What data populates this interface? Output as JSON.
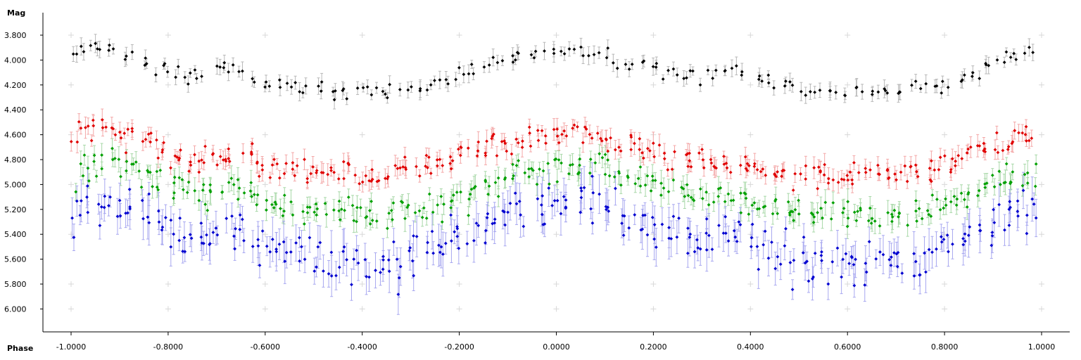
{
  "chart_data": {
    "type": "scatter",
    "ylabel": "Mag",
    "xlabel": "Phase",
    "xlim": [
      -1.06,
      1.06
    ],
    "ylim": [
      6.18,
      3.62
    ],
    "y_inverted": true,
    "x_ticks": [
      "-1.0000",
      "-0.8000",
      "-0.6000",
      "-0.4000",
      "-0.2000",
      "0.0000",
      "0.2000",
      "0.4000",
      "0.6000",
      "0.8000",
      "1.0000"
    ],
    "y_ticks": [
      "3.800",
      "4.000",
      "4.200",
      "4.400",
      "4.600",
      "4.800",
      "5.000",
      "5.200",
      "5.400",
      "5.600",
      "5.800",
      "6.000"
    ],
    "grid": "sparse plus-sign markers",
    "series_colors": {
      "black": "#000000",
      "red": "#e00000",
      "green": "#00a000",
      "blue": "#0000d0"
    },
    "error_bar_colors": {
      "black": "#b8b8b8",
      "red": "#f4a8a8",
      "green": "#a8d8a8",
      "blue": "#a8a8f0"
    },
    "series": [
      {
        "color": "black",
        "x": [
          -1.0,
          -0.97,
          -0.94,
          -0.91,
          -0.88,
          -0.85,
          -0.82,
          -0.79,
          -0.76,
          -0.73,
          -0.7,
          -0.67,
          -0.64,
          -0.61,
          -0.58,
          -0.55,
          -0.52,
          -0.49,
          -0.46,
          -0.43,
          -0.4,
          -0.37,
          -0.34,
          -0.31,
          -0.28,
          -0.25,
          -0.22,
          -0.19,
          -0.16,
          -0.13,
          -0.1,
          -0.07,
          -0.04,
          -0.01,
          0.02,
          0.05,
          0.08,
          0.11,
          0.14,
          0.17,
          0.2,
          0.23,
          0.26,
          0.29,
          0.32,
          0.35,
          0.38,
          0.41,
          0.44,
          0.47,
          0.5,
          0.53,
          0.56,
          0.59,
          0.62,
          0.65,
          0.68,
          0.71,
          0.74,
          0.77,
          0.8,
          0.83,
          0.86,
          0.89,
          0.92,
          0.95,
          0.98
        ],
        "y": [
          3.92,
          3.9,
          3.9,
          3.92,
          3.96,
          4.0,
          4.05,
          4.1,
          4.14,
          4.12,
          4.06,
          4.05,
          4.1,
          4.16,
          4.2,
          4.22,
          4.23,
          4.24,
          4.25,
          4.25,
          4.26,
          4.26,
          4.25,
          4.24,
          4.22,
          4.2,
          4.16,
          4.12,
          4.07,
          4.02,
          3.98,
          3.95,
          3.92,
          3.9,
          3.9,
          3.92,
          3.95,
          3.98,
          4.02,
          4.05,
          4.08,
          4.12,
          4.15,
          4.15,
          4.12,
          4.08,
          4.1,
          4.15,
          4.2,
          4.22,
          4.23,
          4.24,
          4.25,
          4.26,
          4.26,
          4.26,
          4.25,
          4.25,
          4.24,
          4.22,
          4.2,
          4.16,
          4.1,
          4.05,
          4.0,
          3.96,
          3.93
        ]
      },
      {
        "color": "red",
        "x": [
          -1.0,
          -0.97,
          -0.94,
          -0.91,
          -0.88,
          -0.85,
          -0.82,
          -0.79,
          -0.76,
          -0.73,
          -0.7,
          -0.67,
          -0.64,
          -0.61,
          -0.58,
          -0.55,
          -0.52,
          -0.49,
          -0.46,
          -0.43,
          -0.4,
          -0.37,
          -0.34,
          -0.31,
          -0.28,
          -0.25,
          -0.22,
          -0.19,
          -0.16,
          -0.13,
          -0.1,
          -0.07,
          -0.04,
          -0.01,
          0.02,
          0.05,
          0.08,
          0.11,
          0.14,
          0.17,
          0.2,
          0.23,
          0.26,
          0.29,
          0.32,
          0.35,
          0.38,
          0.41,
          0.44,
          0.47,
          0.5,
          0.53,
          0.56,
          0.59,
          0.62,
          0.65,
          0.68,
          0.71,
          0.74,
          0.77,
          0.8,
          0.83,
          0.86,
          0.89,
          0.92,
          0.95,
          0.98
        ],
        "y": [
          4.62,
          4.58,
          4.56,
          4.57,
          4.6,
          4.64,
          4.7,
          4.76,
          4.8,
          4.82,
          4.8,
          4.78,
          4.8,
          4.84,
          4.86,
          4.88,
          4.9,
          4.9,
          4.9,
          4.91,
          4.92,
          4.92,
          4.9,
          4.88,
          4.86,
          4.84,
          4.8,
          4.76,
          4.72,
          4.68,
          4.65,
          4.62,
          4.6,
          4.58,
          4.58,
          4.6,
          4.62,
          4.64,
          4.67,
          4.7,
          4.72,
          4.76,
          4.8,
          4.82,
          4.82,
          4.82,
          4.84,
          4.86,
          4.88,
          4.9,
          4.9,
          4.92,
          4.92,
          4.93,
          4.93,
          4.92,
          4.92,
          4.9,
          4.9,
          4.88,
          4.85,
          4.8,
          4.75,
          4.7,
          4.66,
          4.63,
          4.62
        ]
      },
      {
        "color": "green",
        "x": [
          -1.0,
          -0.97,
          -0.94,
          -0.91,
          -0.88,
          -0.85,
          -0.82,
          -0.79,
          -0.76,
          -0.73,
          -0.7,
          -0.67,
          -0.64,
          -0.61,
          -0.58,
          -0.55,
          -0.52,
          -0.49,
          -0.46,
          -0.43,
          -0.4,
          -0.37,
          -0.34,
          -0.31,
          -0.28,
          -0.25,
          -0.22,
          -0.19,
          -0.16,
          -0.13,
          -0.1,
          -0.07,
          -0.04,
          -0.01,
          0.02,
          0.05,
          0.08,
          0.11,
          0.14,
          0.17,
          0.2,
          0.23,
          0.26,
          0.29,
          0.32,
          0.35,
          0.38,
          0.41,
          0.44,
          0.47,
          0.5,
          0.53,
          0.56,
          0.59,
          0.62,
          0.65,
          0.68,
          0.71,
          0.74,
          0.77,
          0.8,
          0.83,
          0.86,
          0.89,
          0.92,
          0.95,
          0.98
        ],
        "y": [
          5.05,
          4.85,
          4.8,
          4.82,
          4.86,
          4.9,
          4.95,
          5.0,
          5.05,
          5.08,
          5.05,
          5.02,
          5.05,
          5.1,
          5.14,
          5.18,
          5.2,
          5.2,
          5.22,
          5.24,
          5.25,
          5.26,
          5.25,
          5.22,
          5.2,
          5.18,
          5.14,
          5.1,
          5.05,
          5.0,
          4.96,
          4.92,
          4.88,
          4.86,
          4.85,
          4.86,
          4.88,
          4.9,
          4.94,
          4.98,
          5.0,
          5.04,
          5.08,
          5.1,
          5.1,
          5.08,
          5.1,
          5.14,
          5.18,
          5.2,
          5.22,
          5.24,
          5.25,
          5.26,
          5.26,
          5.25,
          5.24,
          5.24,
          5.22,
          5.2,
          5.16,
          5.12,
          5.08,
          5.02,
          4.96,
          4.92,
          4.95
        ]
      },
      {
        "color": "blue",
        "x": [
          -1.0,
          -0.97,
          -0.94,
          -0.91,
          -0.88,
          -0.85,
          -0.82,
          -0.79,
          -0.76,
          -0.73,
          -0.7,
          -0.67,
          -0.64,
          -0.61,
          -0.58,
          -0.55,
          -0.52,
          -0.49,
          -0.46,
          -0.43,
          -0.4,
          -0.37,
          -0.34,
          -0.31,
          -0.28,
          -0.25,
          -0.22,
          -0.19,
          -0.16,
          -0.13,
          -0.1,
          -0.07,
          -0.04,
          -0.01,
          0.02,
          0.05,
          0.08,
          0.11,
          0.14,
          0.17,
          0.2,
          0.23,
          0.26,
          0.29,
          0.32,
          0.35,
          0.38,
          0.41,
          0.44,
          0.47,
          0.5,
          0.53,
          0.56,
          0.59,
          0.62,
          0.65,
          0.68,
          0.71,
          0.74,
          0.77,
          0.8,
          0.83,
          0.86,
          0.89,
          0.92,
          0.95,
          0.98
        ],
        "y": [
          5.25,
          5.15,
          5.12,
          5.15,
          5.2,
          5.26,
          5.32,
          5.38,
          5.42,
          5.45,
          5.42,
          5.4,
          5.42,
          5.46,
          5.5,
          5.54,
          5.56,
          5.58,
          5.6,
          5.62,
          5.63,
          5.64,
          5.62,
          5.6,
          5.56,
          5.52,
          5.48,
          5.42,
          5.36,
          5.3,
          5.25,
          5.2,
          5.16,
          5.13,
          5.12,
          5.13,
          5.16,
          5.2,
          5.25,
          5.3,
          5.34,
          5.38,
          5.42,
          5.44,
          5.44,
          5.42,
          5.44,
          5.48,
          5.52,
          5.56,
          5.58,
          5.6,
          5.62,
          5.64,
          5.65,
          5.64,
          5.63,
          5.62,
          5.6,
          5.56,
          5.5,
          5.45,
          5.4,
          5.35,
          5.3,
          5.25,
          5.22
        ]
      }
    ]
  }
}
